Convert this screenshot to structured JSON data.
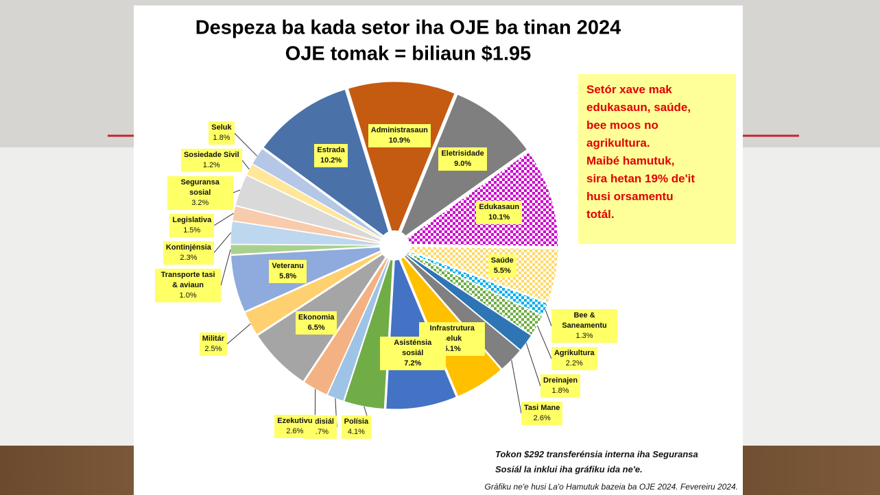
{
  "chart_data": {
    "type": "pie",
    "title": "Despeza ba kada setor iha OJE ba tinan 2024",
    "subtitle": "OJE tomak = biliaun $1.95",
    "categories": [
      "Administrasaun",
      "Eletrisidade",
      "Edukasaun",
      "Saúde",
      "Bee & Saneamentu",
      "Agrikultura",
      "Dreinajen",
      "Tasi Mane",
      "Infrastrutura seluk",
      "Asisténsia sosiál",
      "Polísia",
      "Judisiál",
      "Ezekutivu",
      "Ekonomia",
      "Militár",
      "Veteranu",
      "Transporte tasi & aviaun",
      "Kontinjénsia",
      "Legislativa",
      "Seguransa sosial",
      "Sosiedade Sivil",
      "Seluk",
      "Estrada"
    ],
    "values": [
      10.9,
      9.0,
      10.1,
      5.5,
      1.3,
      2.2,
      1.8,
      2.6,
      5.1,
      7.2,
      4.1,
      1.7,
      2.6,
      6.5,
      2.5,
      5.8,
      1.0,
      2.3,
      1.5,
      3.2,
      1.2,
      1.8,
      10.2
    ],
    "value_labels": [
      "10.9%",
      "9.0%",
      "10.1%",
      "5.5%",
      "1.3%",
      "2.2%",
      "1.8%",
      "2.6%",
      "5.1%",
      "7.2%",
      "4.1%",
      "1.7%",
      "2.6%",
      "6.5%",
      "2.5%",
      "5.8%",
      "1.0%",
      "2.3%",
      "1.5%",
      "3.2%",
      "1.2%",
      "1.8%",
      "10.2%"
    ],
    "colors": [
      "#c55a11",
      "#7f7f7f",
      "#cc00cc",
      "#ffd966",
      "#00b0f0",
      "#70ad47",
      "#2e75b6",
      "#808080",
      "#ffc000",
      "#4472c4",
      "#70ad47",
      "#9dc3e6",
      "#f4b183",
      "#a5a5a5",
      "#ffd070",
      "#8faadc",
      "#a9d18e",
      "#bdd7ee",
      "#f8cbad",
      "#d9d9d9",
      "#ffe699",
      "#b4c7e7",
      "#4a72a8"
    ],
    "patterned": [
      false,
      false,
      true,
      true,
      true,
      true,
      false,
      false,
      false,
      false,
      false,
      false,
      false,
      false,
      false,
      false,
      false,
      false,
      false,
      false,
      false,
      false,
      false
    ],
    "annotation": [
      "Setór xave mak",
      "edukasaun,  saúde,",
      "bee moos no",
      "agrikultura.",
      "Maibé hamutuk,",
      "sira hetan 19% de'it",
      "husi orsamentu",
      "totál."
    ],
    "footnote": [
      "Tokon $292 transferénsia interna iha Seguransa",
      "Sosiál la inklui iha gráfiku ida ne'e."
    ],
    "source": "Gráfiku ne'e husi La'o Hamutuk bazeia ba OJE 2024. Fevereiru 2024."
  }
}
